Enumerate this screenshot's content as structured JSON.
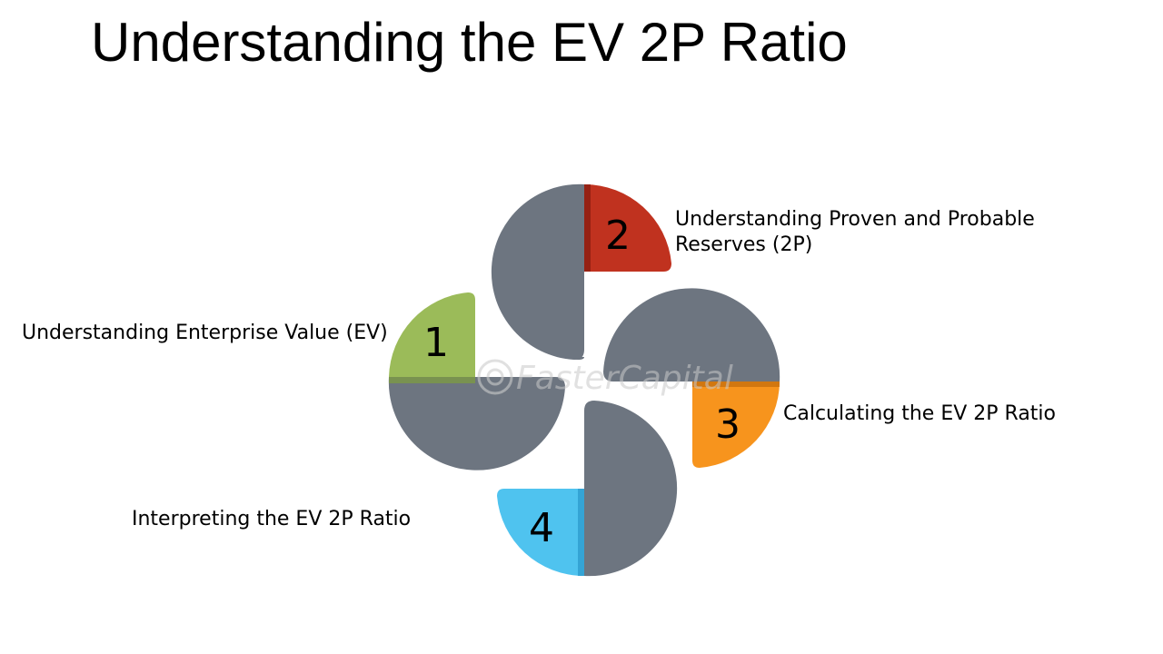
{
  "title": "Understanding the EV 2P Ratio",
  "watermark": "FasterCapital",
  "steps": [
    {
      "number": "1",
      "label": "Understanding Enterprise Value (EV)",
      "color": "#9bbb59"
    },
    {
      "number": "2",
      "label_line1": "Understanding Proven and Probable",
      "label_line2": "Reserves (2P)",
      "color": "#c0321f"
    },
    {
      "number": "3",
      "label": "Calculating the EV 2P Ratio",
      "color": "#f7941d"
    },
    {
      "number": "4",
      "label": "Interpreting the EV 2P Ratio",
      "color": "#4fc3ef"
    }
  ],
  "petal_color": "#6d7580"
}
